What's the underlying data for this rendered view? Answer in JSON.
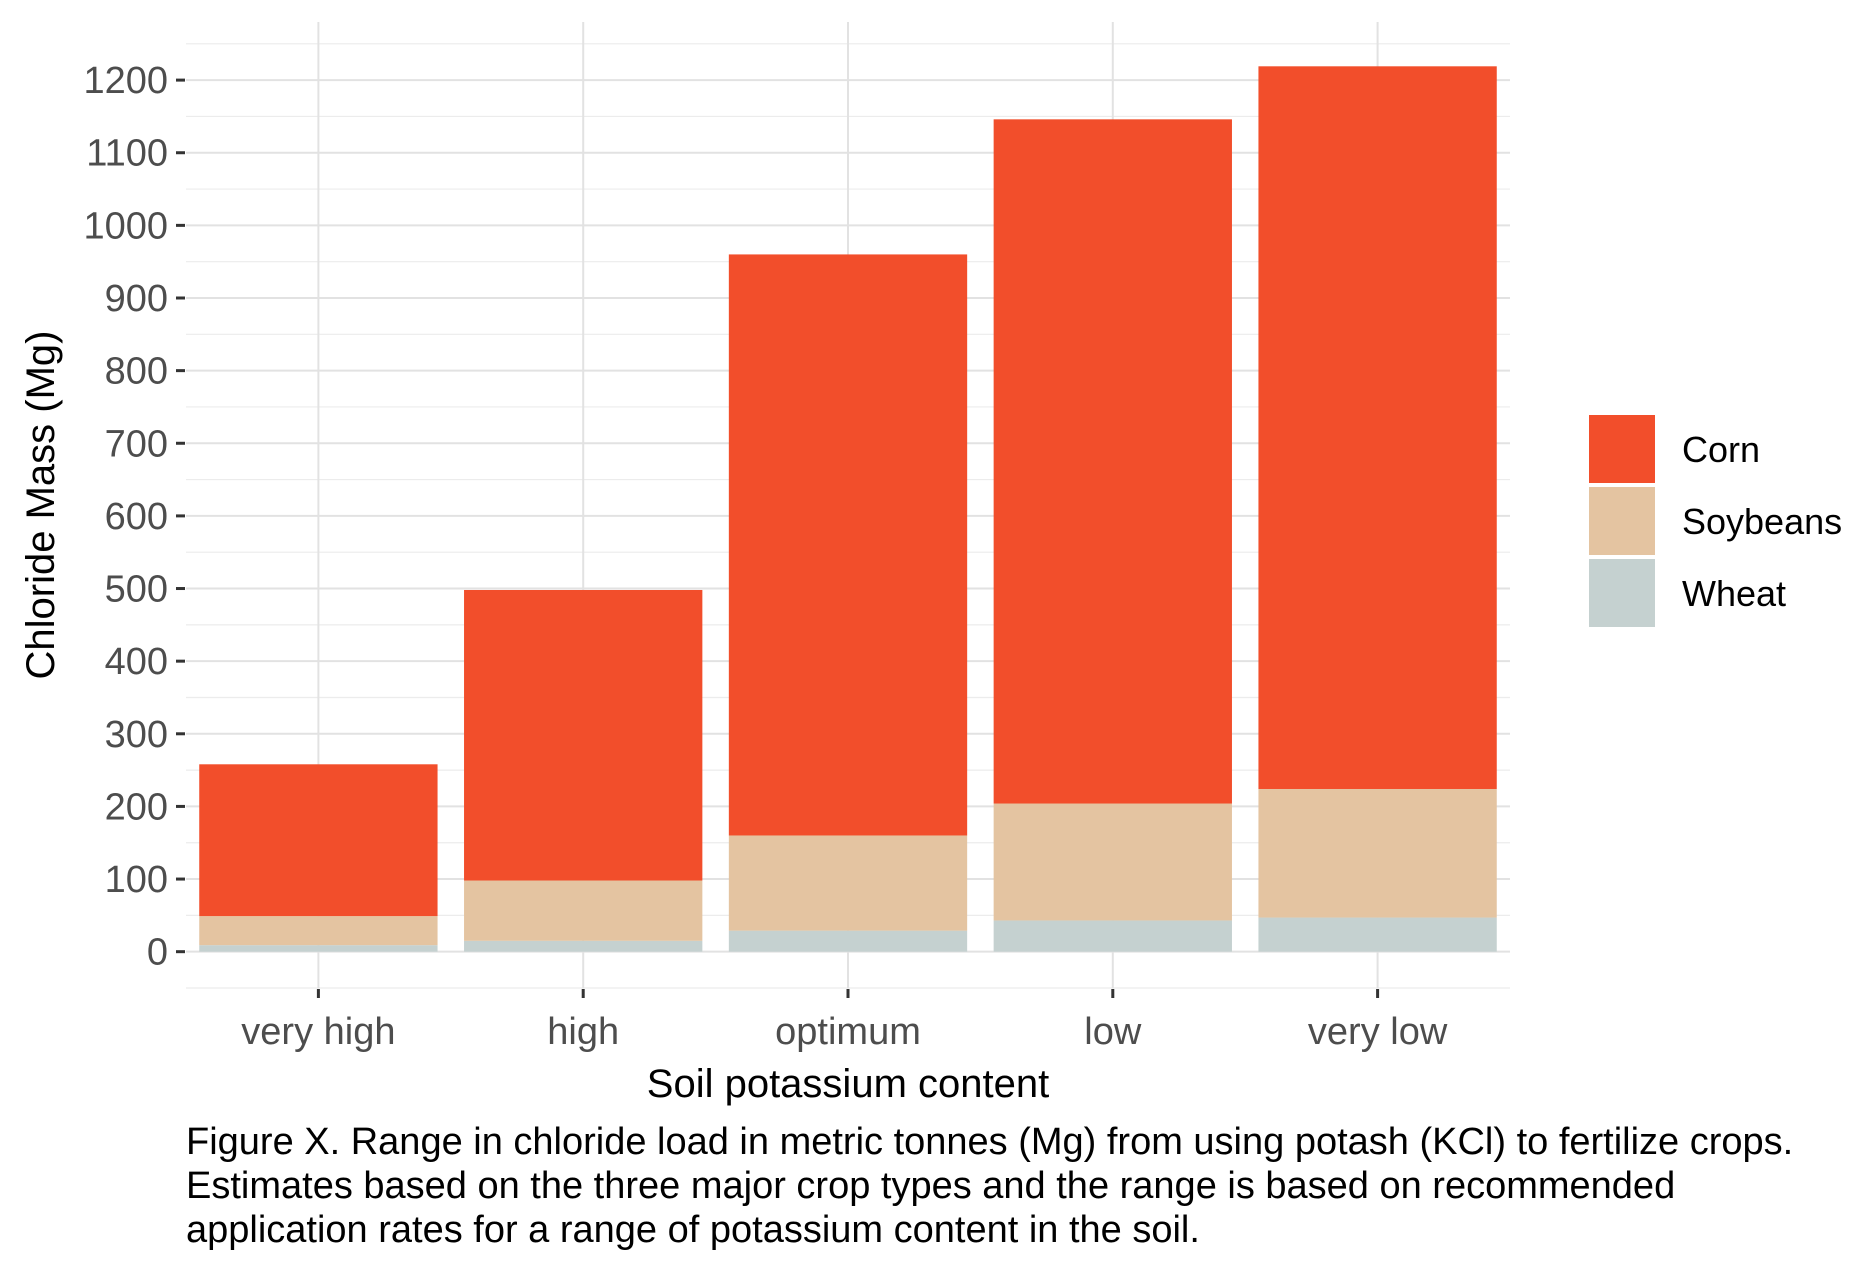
{
  "chart_data": {
    "type": "bar",
    "stacked": true,
    "categories": [
      "very high",
      "high",
      "optimum",
      "low",
      "very low"
    ],
    "series": [
      {
        "name": "Wheat",
        "color": "#c5d1d0",
        "values": [
          9,
          15,
          29,
          43,
          47
        ]
      },
      {
        "name": "Soybeans",
        "color": "#e4c4a1",
        "values": [
          40,
          83,
          131,
          161,
          177
        ]
      },
      {
        "name": "Corn",
        "color": "#f24e2b",
        "values": [
          209,
          400,
          800,
          942,
          995
        ]
      }
    ],
    "totals": [
      258,
      498,
      960,
      1146,
      1219
    ],
    "xlabel": "Soil potassium content",
    "ylabel": "Chloride Mass (Mg)",
    "ylim": [
      -50,
      1280
    ],
    "yticks": [
      0,
      100,
      200,
      300,
      400,
      500,
      600,
      700,
      800,
      900,
      1000,
      1100,
      1200
    ],
    "grid": true,
    "legend_position": "right",
    "legend_order": [
      "Corn",
      "Soybeans",
      "Wheat"
    ],
    "background": "#ffffff",
    "gridline_color": "#e6e6e6"
  },
  "caption": "Figure X. Range in chloride load in metric tonnes (Mg) from using potash (KCl) to fertilize crops. Estimates based on the three major crop types and the range is based on recommended application rates for a range of potassium content in the soil."
}
